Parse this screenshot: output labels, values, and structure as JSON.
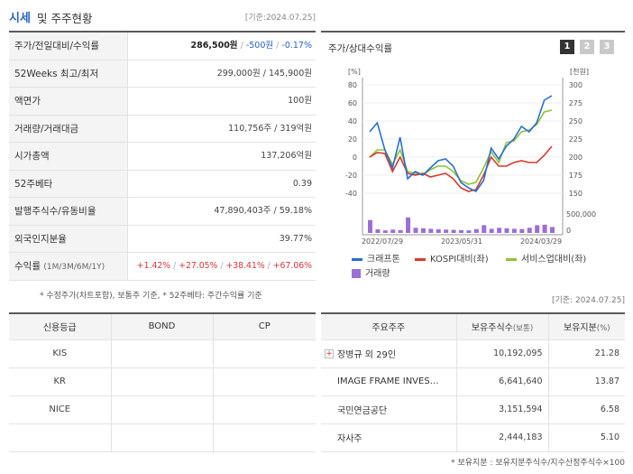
{
  "header": {
    "title_main": "시세",
    "title_rest": "및 주주현황",
    "date": "[기준:2024.07.25]"
  },
  "quote_table": {
    "price": {
      "label": "주가/전일대비/수익률",
      "price": "286,500원",
      "change": "-500원",
      "rate": "-0.17%"
    },
    "week52": {
      "label": "52Weeks 최고/최저",
      "value": "299,000원 / 145,900원"
    },
    "par": {
      "label": "액면가",
      "value": "100원"
    },
    "volume": {
      "label": "거래량/거래대금",
      "value": "110,756주 / 319억원"
    },
    "mcap": {
      "label": "시가총액",
      "value": "137,206억원"
    },
    "beta": {
      "label": "52주베타",
      "value": "0.39"
    },
    "shares": {
      "label": "발행주식수/유동비율",
      "value": "47,890,403주 / 59.18%"
    },
    "foreign": {
      "label": "외국인지분율",
      "value": "39.77%"
    },
    "returns": {
      "label": "수익률",
      "label_sub": "(1M/3M/6M/1Y)",
      "r1": "+1.42%",
      "r2": "+27.05%",
      "r3": "+38.41%",
      "r4": "+67.06%"
    }
  },
  "footnote1": "* 수정주가(차트포함), 보통주 기준, * 52주베타: 주간수익률 기준",
  "chart_panel": {
    "title": "주가/상대수익률",
    "tabs": [
      "1",
      "2",
      "3"
    ],
    "legend": {
      "s1": "크래프톤",
      "s2": "KOSPI대비(좌)",
      "s3": "서비스업대비(좌)",
      "s4": "거래량"
    }
  },
  "chart_data": {
    "type": "line",
    "left_axis": {
      "unit": "[%]",
      "ticks": [
        "80",
        "60",
        "40",
        "20",
        "0",
        "-20",
        "-40"
      ],
      "ylim": [
        -40,
        80
      ]
    },
    "right_axis": {
      "unit": "[천원]",
      "ticks": [
        "300",
        "275",
        "250",
        "225",
        "200",
        "175",
        "150"
      ],
      "ylim": [
        150,
        300
      ]
    },
    "volume_axis": {
      "ticks": [
        "500,000",
        "0"
      ]
    },
    "x_ticks": [
      "2022/07/29",
      "2023/05/31",
      "2024/03/29"
    ],
    "series": [
      {
        "name": "크래프톤",
        "color": "#2a6fd1",
        "values": [
          28,
          38,
          8,
          -12,
          22,
          -24,
          -16,
          -20,
          -12,
          -4,
          -2,
          -10,
          -28,
          -34,
          -38,
          -26,
          10,
          -2,
          12,
          20,
          34,
          28,
          38,
          63,
          68
        ]
      },
      {
        "name": "KOSPI대비(좌)",
        "color": "#d63a2c",
        "values": [
          0,
          5,
          4,
          -16,
          0,
          -18,
          -20,
          -18,
          -22,
          -20,
          -18,
          -24,
          -34,
          -38,
          -36,
          -20,
          0,
          -10,
          -10,
          -6,
          -4,
          -6,
          -6,
          2,
          12
        ]
      },
      {
        "name": "서비스업대비(좌)",
        "color": "#8cc43a",
        "values": [
          0,
          8,
          8,
          -8,
          8,
          -16,
          -18,
          -20,
          -14,
          -10,
          -10,
          -16,
          -26,
          -30,
          -28,
          -12,
          6,
          -6,
          16,
          18,
          28,
          30,
          36,
          50,
          52
        ]
      },
      {
        "name": "거래량",
        "color": "#9b6fd6",
        "values": [
          500000,
          140000,
          100000,
          130000,
          110000,
          600000,
          200000,
          180000,
          160000,
          140000,
          130000,
          120000,
          110000,
          100000,
          150000,
          300000,
          160000,
          200000,
          180000,
          160000,
          150000,
          200000,
          300000,
          320000,
          230000
        ]
      }
    ]
  },
  "date2": "[기준: 2024.07.25]",
  "credit_table": {
    "headers": [
      "신용등급",
      "BOND",
      "CP"
    ],
    "rows": [
      {
        "agency": "KIS",
        "bond": "",
        "cp": ""
      },
      {
        "agency": "KR",
        "bond": "",
        "cp": ""
      },
      {
        "agency": "NICE",
        "bond": "",
        "cp": ""
      }
    ]
  },
  "holders_table": {
    "headers": {
      "name": "주요주주",
      "shares": "보유주식수",
      "shares_sub": "(보통)",
      "pct": "보유지분",
      "pct_sub": "(%)"
    },
    "rows": [
      {
        "name": "장병규 외 29인",
        "shares": "10,192,095",
        "pct": "21.28"
      },
      {
        "name": "IMAGE FRAME INVES…",
        "shares": "6,641,640",
        "pct": "13.87"
      },
      {
        "name": "국민연금공단",
        "shares": "3,151,594",
        "pct": "6.58"
      },
      {
        "name": "자사주",
        "shares": "2,444,183",
        "pct": "5.10"
      }
    ]
  },
  "footnote2": "* 보유지분 : 보유지분주식수/지수산정주식수×100"
}
